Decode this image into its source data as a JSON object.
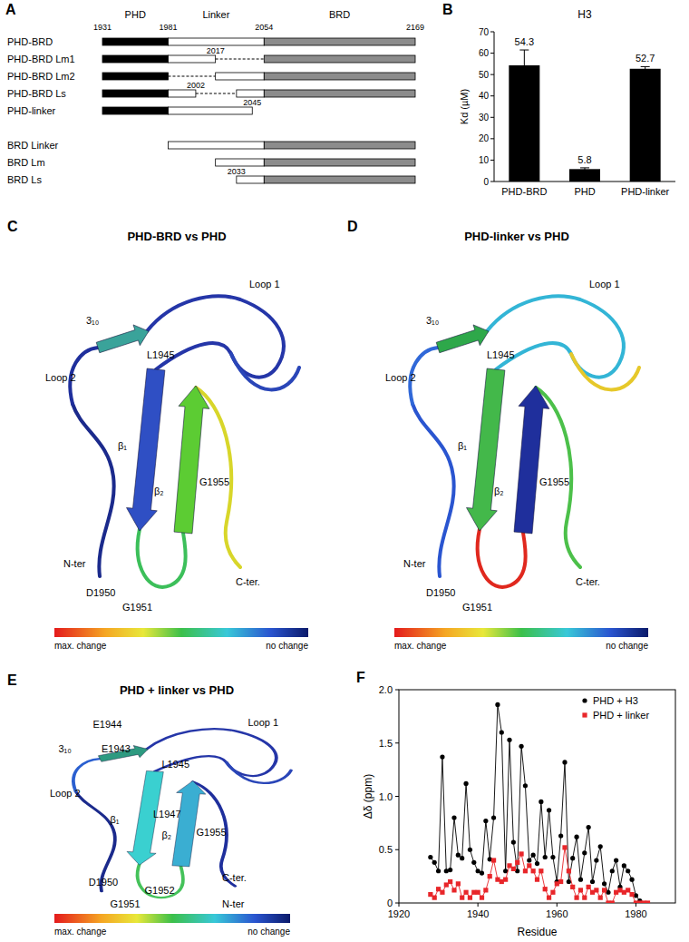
{
  "figure": {
    "panel_a": {
      "panel_label": "A",
      "domains": [
        {
          "name": "PHD",
          "start": 1931,
          "end": 1981,
          "color": "#000000"
        },
        {
          "name": "Linker",
          "start": 1981,
          "end": 2054,
          "color": "#ffffff"
        },
        {
          "name": "BRD",
          "start": 2054,
          "end": 2169,
          "color": "#8c8c8c"
        }
      ],
      "boundaries": [
        1931,
        1981,
        2054,
        2169
      ],
      "construct_groups": [
        [
          {
            "name": "PHD-BRD",
            "segments": [
              {
                "domain": "PHD",
                "start": 1931,
                "end": 1981
              },
              {
                "domain": "Linker",
                "start": 1981,
                "end": 2054
              },
              {
                "domain": "BRD",
                "start": 2054,
                "end": 2169
              }
            ]
          },
          {
            "name": "PHD-BRD Lm1",
            "mark": 2017,
            "segments": [
              {
                "domain": "PHD",
                "start": 1931,
                "end": 1981
              },
              {
                "domain": "Linker",
                "start": 1981,
                "end": 2017
              },
              {
                "line_style": "dashed",
                "start": 2017,
                "end": 2054
              },
              {
                "domain": "BRD",
                "start": 2054,
                "end": 2169
              }
            ]
          },
          {
            "name": "PHD-BRD Lm2",
            "segments": [
              {
                "domain": "PHD",
                "start": 1931,
                "end": 1981
              },
              {
                "line_style": "dashed",
                "start": 1981,
                "end": 2017
              },
              {
                "domain": "Linker",
                "start": 2017,
                "end": 2054
              },
              {
                "domain": "BRD",
                "start": 2054,
                "end": 2169
              }
            ]
          },
          {
            "name": "PHD-BRD Ls",
            "mark": 2002,
            "segments": [
              {
                "domain": "PHD",
                "start": 1931,
                "end": 1981
              },
              {
                "domain": "Linker",
                "start": 1981,
                "end": 2002
              },
              {
                "line_style": "dashed",
                "start": 2002,
                "end": 2033
              },
              {
                "domain": "Linker",
                "start": 2033,
                "end": 2054
              },
              {
                "domain": "BRD",
                "start": 2054,
                "end": 2169
              }
            ]
          },
          {
            "name": "PHD-linker",
            "mark": 2045,
            "segments": [
              {
                "domain": "PHD",
                "start": 1931,
                "end": 1981
              },
              {
                "domain": "Linker",
                "start": 1981,
                "end": 2045
              }
            ]
          }
        ],
        [
          {
            "name": "BRD Linker",
            "segments": [
              {
                "domain": "Linker",
                "start": 1981,
                "end": 2054
              },
              {
                "domain": "BRD",
                "start": 2054,
                "end": 2169
              }
            ]
          },
          {
            "name": "BRD Lm",
            "segments": [
              {
                "domain": "Linker",
                "start": 2017,
                "end": 2054
              },
              {
                "domain": "BRD",
                "start": 2054,
                "end": 2169
              }
            ]
          },
          {
            "name": "BRD Ls",
            "mark": 2033,
            "segments": [
              {
                "domain": "Linker",
                "start": 2033,
                "end": 2054
              },
              {
                "domain": "BRD",
                "start": 2054,
                "end": 2169
              }
            ]
          }
        ]
      ]
    },
    "panel_c": {
      "panel_label": "C",
      "title": "PHD-BRD vs PHD",
      "labels": [
        "3₁₀",
        "L1945",
        "Loop 1",
        "Loop 2",
        "β₁",
        "β₂",
        "G1955",
        "N-ter",
        "C-ter.",
        "D1950",
        "G1951"
      ],
      "colorbar": [
        "max. change",
        "no change"
      ]
    },
    "panel_d": {
      "panel_label": "D",
      "title": "PHD-linker vs PHD",
      "labels": [
        "3₁₀",
        "L1945",
        "Loop 1",
        "Loop 2",
        "β₁",
        "β₂",
        "G1955",
        "N-ter",
        "C-ter.",
        "D1950",
        "G1951"
      ],
      "colorbar": [
        "max. change",
        "no change"
      ]
    },
    "panel_e": {
      "panel_label": "E",
      "title": "PHD + linker vs PHD",
      "labels": [
        "E1944",
        "E1943",
        "3₁₀",
        "L1945",
        "Loop 1",
        "Loop 2",
        "β₁",
        "L1947",
        "β₂",
        "G1955",
        "C-ter.",
        "D1950",
        "G1952",
        "G1951",
        "N-ter"
      ],
      "colorbar": [
        "max. change",
        "no change"
      ]
    }
  },
  "chart_data": [
    {
      "type": "bar",
      "panel_label": "B",
      "title": "H3",
      "y_label": "Kd (µM)",
      "categories": [
        "PHD-BRD",
        "PHD",
        "PHD-linker"
      ],
      "values": [
        54.3,
        5.8,
        52.7
      ],
      "errors": [
        7.2,
        0.6,
        1.0
      ],
      "color": "#000000",
      "data_labels": true,
      "ylim": [
        0,
        70
      ],
      "yticks": [
        0,
        10,
        20,
        30,
        40,
        50,
        60,
        70
      ]
    },
    {
      "type": "line",
      "panel_label": "F",
      "x_label": "Residue",
      "y_label": "Δδ (ppm)",
      "x": [
        1928,
        1929,
        1930,
        1931,
        1932,
        1933,
        1934,
        1935,
        1936,
        1937,
        1938,
        1939,
        1940,
        1941,
        1942,
        1943,
        1944,
        1945,
        1946,
        1947,
        1948,
        1949,
        1950,
        1951,
        1952,
        1953,
        1954,
        1955,
        1956,
        1957,
        1958,
        1959,
        1960,
        1961,
        1962,
        1963,
        1964,
        1965,
        1966,
        1967,
        1968,
        1969,
        1970,
        1971,
        1972,
        1973,
        1974,
        1975,
        1976,
        1977,
        1978,
        1979,
        1980,
        1981,
        1982,
        1983
      ],
      "series": [
        {
          "name": "PHD + H3",
          "color": "#000000",
          "marker": "circle",
          "values": [
            0.43,
            0.38,
            0.3,
            1.37,
            0.3,
            0.31,
            0.8,
            0.45,
            0.42,
            1.12,
            0.5,
            0.38,
            0.3,
            0.28,
            0.77,
            0.41,
            0.8,
            1.86,
            1.6,
            0.3,
            1.53,
            0.57,
            0.3,
            1.47,
            1.1,
            0.4,
            0.45,
            0.37,
            0.95,
            0.43,
            0.87,
            0.43,
            0.2,
            0.63,
            1.32,
            0.2,
            0.42,
            0.62,
            0.22,
            0.47,
            0.71,
            0.2,
            0.4,
            0.53,
            0.18,
            0.1,
            0.3,
            0.4,
            0.15,
            0.35,
            0.3,
            0.22,
            0.07,
            0.02,
            null,
            null
          ]
        },
        {
          "name": "PHD + linker",
          "color": "#e8262a",
          "marker": "square",
          "values": [
            0.08,
            0.05,
            0.13,
            0.1,
            0.17,
            0.2,
            0.12,
            0.18,
            0.05,
            0.1,
            0.05,
            0.1,
            0.1,
            0.05,
            0.12,
            0.25,
            0.4,
            0.22,
            0.2,
            0.22,
            0.35,
            0.32,
            0.38,
            0.46,
            0.3,
            0.35,
            0.3,
            0.22,
            0.3,
            0.13,
            0.05,
            0.1,
            0.18,
            0.2,
            0.52,
            0.3,
            0.15,
            0.05,
            0.12,
            0.05,
            0.15,
            0.1,
            0.12,
            0.05,
            0.12,
            0,
            0,
            0.1,
            0.12,
            0.1,
            0.12,
            0.08,
            0,
            0,
            0,
            0
          ]
        }
      ],
      "xlim": [
        1920,
        1990
      ],
      "xticks": [
        1920,
        1940,
        1960,
        1980
      ],
      "ylim": [
        0,
        2
      ],
      "yticks": [
        0,
        0.5,
        {
          "value": 1,
          "label": "1.0"
        },
        1.5,
        {
          "value": 2,
          "label": "2.0"
        }
      ],
      "legend": "top-right"
    }
  ]
}
